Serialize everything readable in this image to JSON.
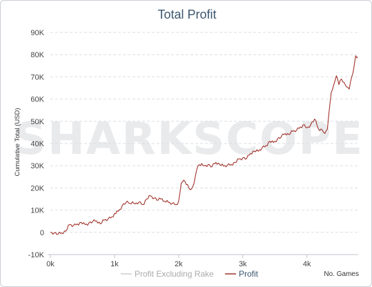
{
  "chart_data": {
    "type": "line",
    "title": "Total Profit",
    "ylabel": "Cumulative Total (USD)",
    "xlabel": "No. Games",
    "watermark": "SHARKSCOPE",
    "ylim": [
      -10000,
      90000
    ],
    "xlim": [
      0,
      4800
    ],
    "y_ticks": [
      "-10K",
      "0",
      "10K",
      "20K",
      "30K",
      "40K",
      "50K",
      "60K",
      "70K",
      "80K",
      "90K"
    ],
    "y_tick_values": [
      -10000,
      0,
      10000,
      20000,
      30000,
      40000,
      50000,
      60000,
      70000,
      80000,
      90000
    ],
    "x_ticks": [
      "0k",
      "1k",
      "2k",
      "3k",
      "4k"
    ],
    "x_tick_values": [
      0,
      1000,
      2000,
      3000,
      4000
    ],
    "grid": true,
    "legend_position": "bottom",
    "series": [
      {
        "name": "Profit Excluding Rake",
        "color": "#cccccc",
        "x": [],
        "y": []
      },
      {
        "name": "Profit",
        "color": "#a2332b",
        "x": [
          0,
          60,
          120,
          180,
          240,
          300,
          360,
          420,
          480,
          540,
          600,
          660,
          720,
          780,
          840,
          900,
          960,
          1000,
          1060,
          1120,
          1180,
          1240,
          1280,
          1320,
          1380,
          1440,
          1500,
          1560,
          1620,
          1680,
          1740,
          1780,
          1840,
          1900,
          1960,
          2000,
          2040,
          2080,
          2120,
          2160,
          2200,
          2240,
          2280,
          2320,
          2360,
          2400,
          2460,
          2520,
          2580,
          2640,
          2700,
          2760,
          2820,
          2880,
          2940,
          3000,
          3060,
          3120,
          3180,
          3240,
          3300,
          3360,
          3420,
          3480,
          3540,
          3600,
          3660,
          3720,
          3780,
          3840,
          3900,
          3960,
          4000,
          4060,
          4120,
          4180,
          4240,
          4280,
          4320,
          4360,
          4380,
          4420,
          4460,
          4500,
          4540,
          4580,
          4620,
          4660,
          4700,
          4740,
          4760,
          4780,
          4790
        ],
        "y": [
          0,
          -200,
          -800,
          -300,
          500,
          3500,
          3000,
          3800,
          4500,
          3500,
          4200,
          4800,
          5200,
          3800,
          5500,
          6000,
          7000,
          8500,
          9500,
          12000,
          13500,
          13000,
          13800,
          12800,
          13600,
          12500,
          15000,
          16500,
          15500,
          14500,
          15200,
          14000,
          13500,
          13000,
          12500,
          14000,
          22000,
          23500,
          21500,
          20000,
          19500,
          22000,
          28000,
          30500,
          31000,
          30000,
          30500,
          29500,
          31500,
          30500,
          29800,
          30200,
          30600,
          31500,
          33000,
          33500,
          33200,
          35500,
          36500,
          36500,
          38000,
          39000,
          41000,
          40500,
          42000,
          43000,
          44500,
          44000,
          45500,
          46000,
          47500,
          48500,
          47000,
          48500,
          51000,
          46500,
          46000,
          44500,
          46500,
          58000,
          63000,
          66500,
          70500,
          66500,
          69000,
          67500,
          65500,
          64500,
          70000,
          75500,
          79500,
          78500,
          79000
        ]
      }
    ]
  }
}
